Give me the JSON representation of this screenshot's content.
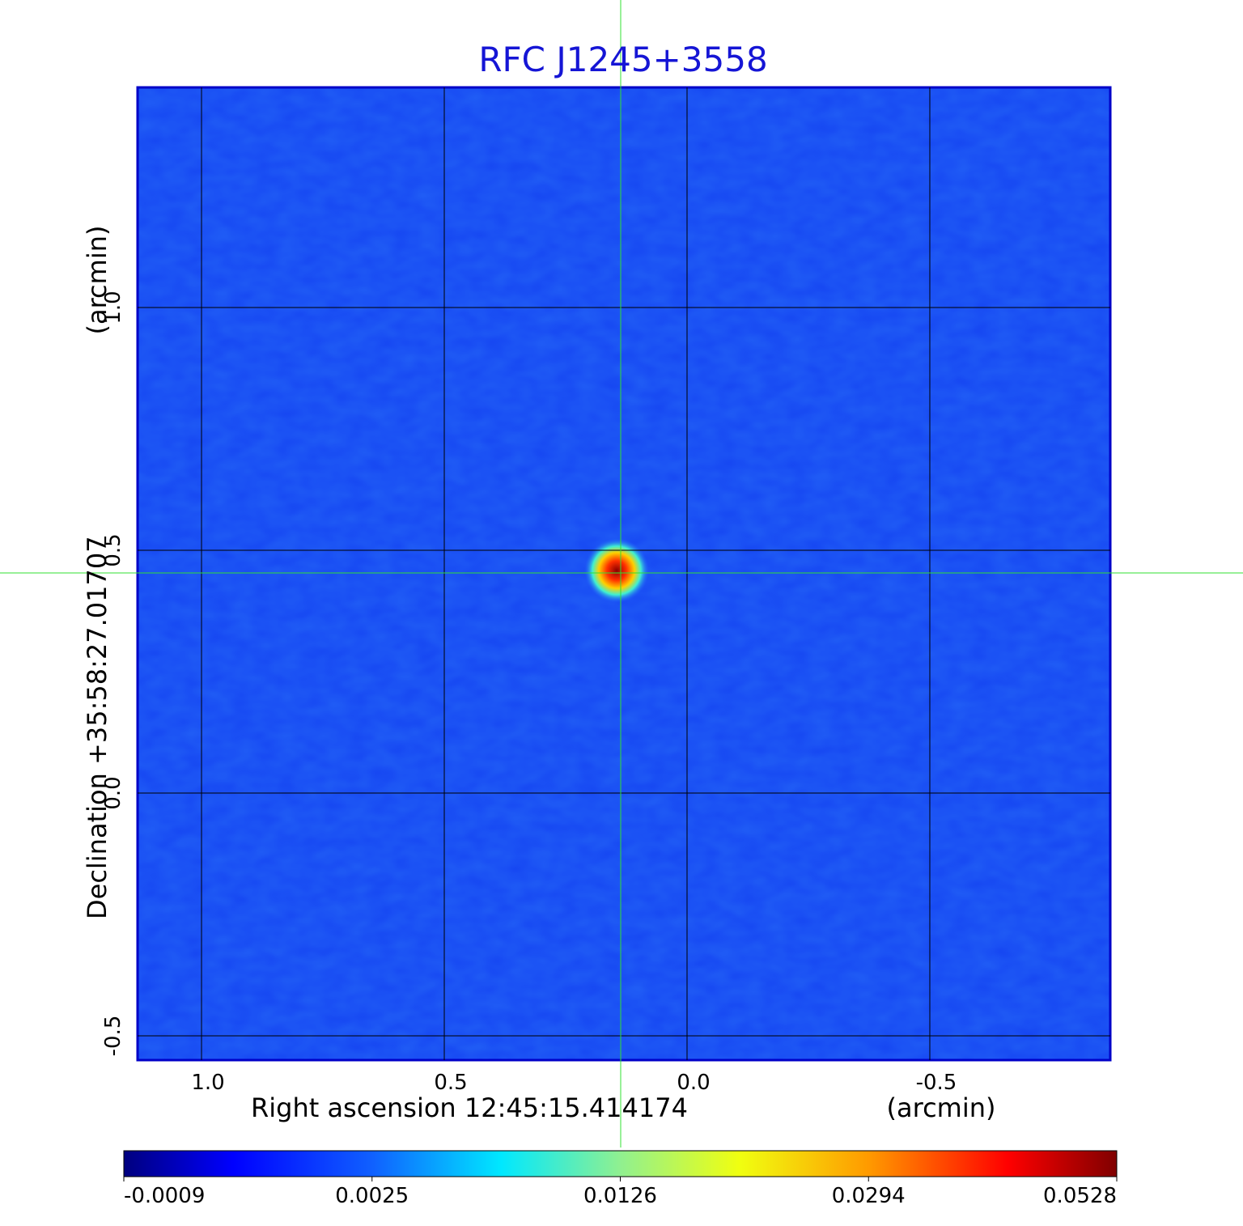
{
  "chart_data": {
    "type": "image",
    "title": "RFC J1245+3558",
    "x_label": "Right ascension  12:45:15.414174",
    "x_unit": "(arcmin)",
    "y_label": "Declination  +35:58:27.01707",
    "y_unit": "(arcmin)",
    "xlim": [
      1.1317,
      -0.8717
    ],
    "ylim": [
      -0.55,
      1.4533
    ],
    "xticks": [
      1.0,
      0.5,
      0.0,
      -0.5
    ],
    "yticks": [
      -0.5,
      0.0,
      0.5,
      1.0
    ],
    "xtick_labels": [
      "1.0",
      "0.5",
      "0.0",
      "-0.5"
    ],
    "ytick_labels": [
      "-0.5",
      "0.0",
      "0.5",
      "1.0"
    ],
    "grid": true,
    "colorbar": {
      "ticks": [
        -0.0009,
        0.0025,
        0.0126,
        0.0294,
        0.0528
      ]
    }
  }
}
